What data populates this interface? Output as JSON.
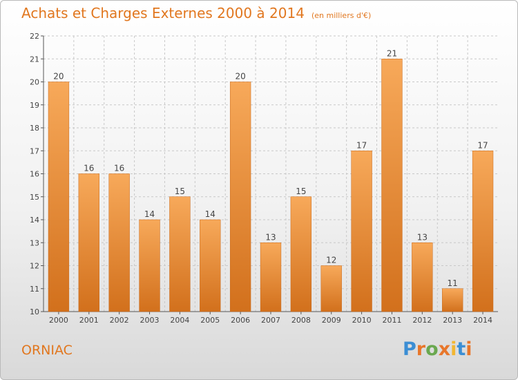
{
  "header": {
    "title": "Achats et Charges Externes 2000 à 2014",
    "subtitle": "(en milliers d'€)"
  },
  "footer": {
    "city": "ORNIAC",
    "logo_text": "Proxiti",
    "logo_colors": [
      "#3b8ed4",
      "#e8762a",
      "#6aa84f",
      "#e8762a",
      "#f2b632",
      "#3b8ed4",
      "#e8762a"
    ]
  },
  "colors": {
    "accent": "#e1771f",
    "bar_light": "#f7a95a",
    "bar_dark": "#d2701c",
    "grid": "#c8c8c8"
  },
  "chart_data": {
    "type": "bar",
    "categories": [
      "2000",
      "2001",
      "2002",
      "2003",
      "2004",
      "2005",
      "2006",
      "2007",
      "2008",
      "2009",
      "2010",
      "2011",
      "2012",
      "2013",
      "2014"
    ],
    "values": [
      20,
      16,
      16,
      14,
      15,
      14,
      20,
      13,
      15,
      12,
      17,
      21,
      13,
      11,
      17
    ],
    "ylim": [
      10,
      22
    ],
    "yticks": [
      10,
      11,
      12,
      13,
      14,
      15,
      16,
      17,
      18,
      19,
      20,
      21,
      22
    ],
    "grid": true,
    "data_labels": true
  }
}
